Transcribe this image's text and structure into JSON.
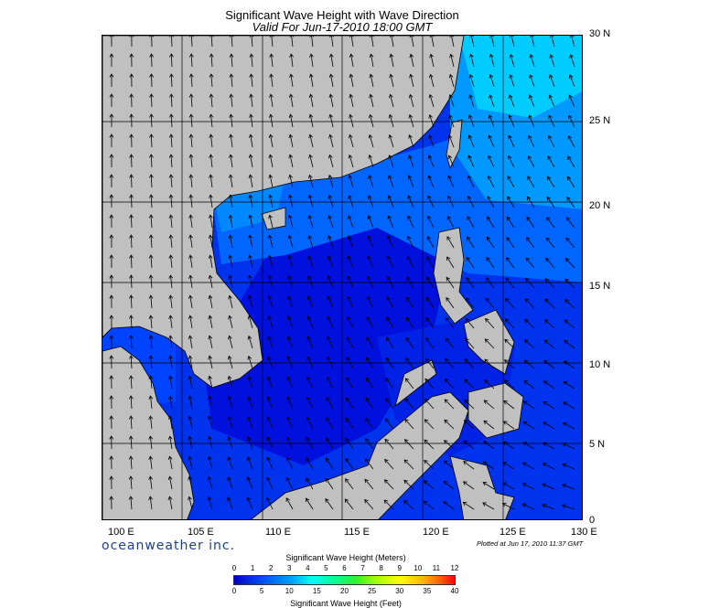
{
  "title": {
    "line1": "Significant Wave Height with Wave Direction",
    "line2": "Valid For Jun-17-2010 18:00 GMT"
  },
  "axes": {
    "lat_labels": [
      "30 N",
      "25 N",
      "20 N",
      "15 N",
      "10 N",
      "5 N",
      "0"
    ],
    "lon_labels": [
      "100 E",
      "105 E",
      "110 E",
      "115 E",
      "120 E",
      "125 E",
      "130 E"
    ]
  },
  "brand": "oceanweather inc.",
  "plotted_at": "Plotted at Jun 17, 2010 11:37 GMT",
  "legend": {
    "meters_title": "Significant Wave Height (Meters)",
    "feet_title": "Significant Wave Height (Feet)",
    "meters_ticks": [
      "0",
      "1",
      "2",
      "3",
      "4",
      "5",
      "6",
      "7",
      "8",
      "9",
      "10",
      "11",
      "12"
    ],
    "feet_ticks": [
      "0",
      "5",
      "10",
      "15",
      "20",
      "25",
      "30",
      "35",
      "40"
    ]
  },
  "colors": {
    "land": "#c0c0c0",
    "ocean_deep_blue": "#0000ee",
    "ocean_mid_blue": "#0044ff",
    "ocean_light_blue": "#0088ff",
    "ocean_cyan": "#00ccff",
    "brand_color": "#1d3f8f"
  }
}
